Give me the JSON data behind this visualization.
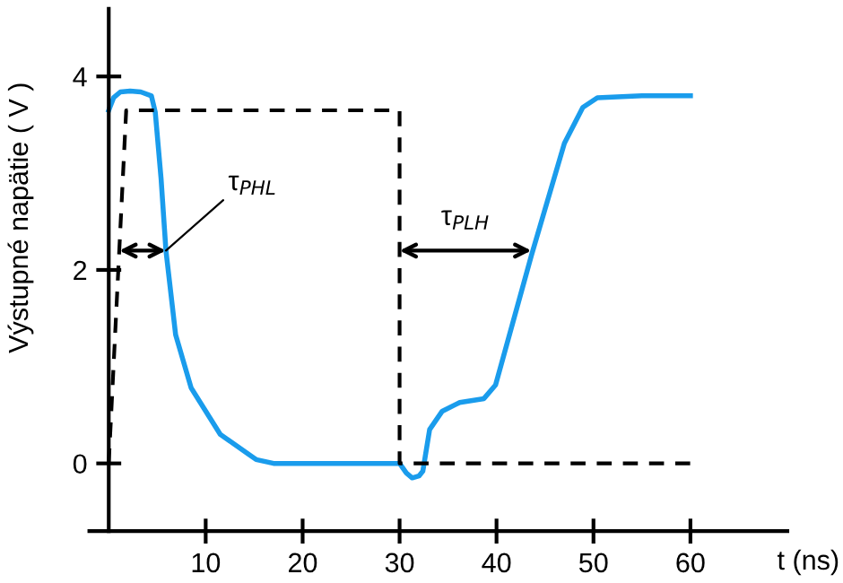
{
  "chart_data": {
    "type": "line",
    "xlabel": "t (ns)",
    "ylabel": "Výstupné napätie ( V )",
    "xlim": [
      -2,
      70
    ],
    "ylim": [
      -0.7,
      4.7
    ],
    "xticks": [
      10,
      20,
      30,
      40,
      50,
      60
    ],
    "yticks": [
      0,
      2,
      4
    ],
    "grid": false,
    "legend": false,
    "marker": "none",
    "series": [
      {
        "color": "#1a9cec",
        "line_style": "solid",
        "x": [
          0,
          0.5,
          1.2,
          2.2,
          3.3,
          4.4,
          4.8,
          5.4,
          5.9,
          6.9,
          8.5,
          11.5,
          15.2,
          17,
          20,
          30,
          30.7,
          31.3,
          32.0,
          32.4,
          33.1,
          34.4,
          36.2,
          38.7,
          39.9,
          43.6,
          47,
          48.9,
          50.4,
          55,
          60
        ],
        "values": [
          3.65,
          3.78,
          3.84,
          3.85,
          3.84,
          3.8,
          3.63,
          2.94,
          2.2,
          1.33,
          0.78,
          0.3,
          0.04,
          0,
          0,
          0,
          -0.1,
          -0.15,
          -0.13,
          -0.08,
          0.35,
          0.54,
          0.63,
          0.67,
          0.81,
          2.15,
          3.31,
          3.68,
          3.78,
          3.8,
          3.8
        ]
      },
      {
        "color": "#000000",
        "line_style": "dashed",
        "x": [
          0,
          1.8,
          30,
          30,
          60
        ],
        "values": [
          0,
          3.65,
          3.65,
          0,
          0
        ]
      }
    ],
    "annotations": [
      {
        "text": "τ$_{PHL}$",
        "x": 5.9,
        "y": 2.2
      },
      {
        "text": "τ$_{PLH}$",
        "x": 43.6,
        "y": 2.2
      }
    ]
  }
}
